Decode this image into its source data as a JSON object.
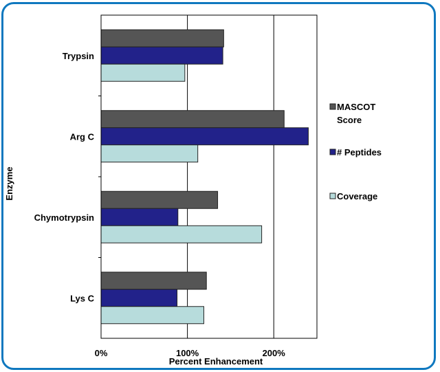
{
  "chart_data": {
    "type": "bar",
    "orientation": "horizontal",
    "categories": [
      "Trypsin",
      "Arg C",
      "Chymotrypsin",
      "Lys C"
    ],
    "series": [
      {
        "name": "MASCOT Score",
        "legend_lines": [
          "MASCOT",
          "Score"
        ],
        "color": "#555555",
        "values": [
          142,
          212,
          135,
          122
        ]
      },
      {
        "name": "# Peptides",
        "legend_lines": [
          "# Peptides"
        ],
        "color": "#22228a",
        "values": [
          141,
          240,
          89,
          88
        ]
      },
      {
        "name": "Coverage",
        "legend_lines": [
          "Coverage"
        ],
        "color": "#b7dcdc",
        "values": [
          97,
          112,
          186,
          119
        ]
      }
    ],
    "xlim": [
      0,
      250
    ],
    "xticks": [
      0,
      100,
      200
    ],
    "xtick_labels": [
      "0%",
      "100%",
      "200%"
    ],
    "xlabel": "Percent Enhancement",
    "ylabel": "Enzyme",
    "grid": true,
    "legend_position": "right"
  }
}
